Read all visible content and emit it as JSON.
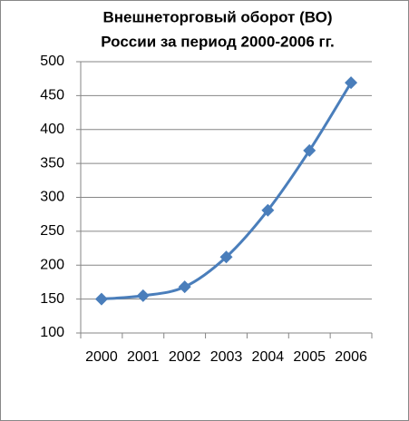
{
  "chart_data": {
    "type": "line",
    "title": [
      "Внешнеторговый оборот (ВО)",
      "России за период 2000-2006 гг."
    ],
    "categories": [
      "2000",
      "2001",
      "2002",
      "2003",
      "2004",
      "2005",
      "2006"
    ],
    "values": [
      150,
      155,
      168,
      212,
      281,
      369,
      469
    ],
    "color": "#4a7ebb",
    "ylim": [
      100,
      500
    ],
    "yticks": [
      100,
      150,
      200,
      250,
      300,
      350,
      400,
      450,
      500
    ],
    "grid": true,
    "smooth": true
  }
}
